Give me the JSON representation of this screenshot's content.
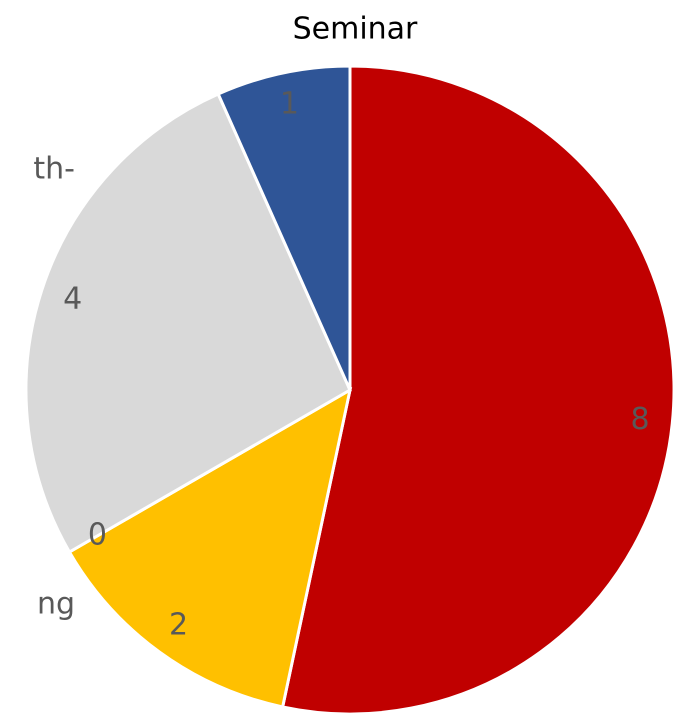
{
  "chart_data": {
    "type": "pie",
    "title": "Seminar",
    "values": [
      8,
      2,
      0,
      4,
      1
    ],
    "colors": [
      "#c00000",
      "#ffc000",
      "#70ad47",
      "#d9d9d9",
      "#2f5597"
    ],
    "annotations": [
      "th-",
      "ng"
    ]
  }
}
